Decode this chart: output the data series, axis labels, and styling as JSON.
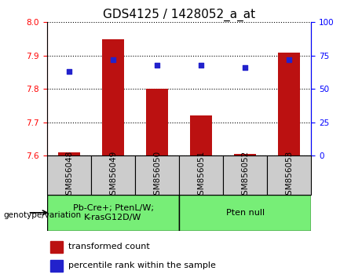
{
  "title": "GDS4125 / 1428052_a_at",
  "categories": [
    "GSM856048",
    "GSM856049",
    "GSM856050",
    "GSM856051",
    "GSM856052",
    "GSM856053"
  ],
  "bar_values": [
    7.61,
    7.95,
    7.8,
    7.72,
    7.605,
    7.91
  ],
  "bar_base": 7.6,
  "percentile_values": [
    63,
    72,
    68,
    68,
    66,
    72
  ],
  "ylim": [
    7.6,
    8.0
  ],
  "ylim_right": [
    0,
    100
  ],
  "yticks_left": [
    7.6,
    7.7,
    7.8,
    7.9,
    8.0
  ],
  "yticks_right": [
    0,
    25,
    50,
    75,
    100
  ],
  "bar_color": "#bb1111",
  "dot_color": "#2222cc",
  "group1_label": "Pb-Cre+; PtenL/W;\nK-rasG12D/W",
  "group2_label": "Pten null",
  "group1_indices": [
    0,
    1,
    2
  ],
  "group2_indices": [
    3,
    4,
    5
  ],
  "group_color": "#77ee77",
  "sample_box_color": "#cccccc",
  "xlabel": "genotype/variation",
  "legend_bar_label": "transformed count",
  "legend_dot_label": "percentile rank within the sample",
  "title_fontsize": 11,
  "tick_fontsize": 7.5,
  "label_fontsize": 8
}
